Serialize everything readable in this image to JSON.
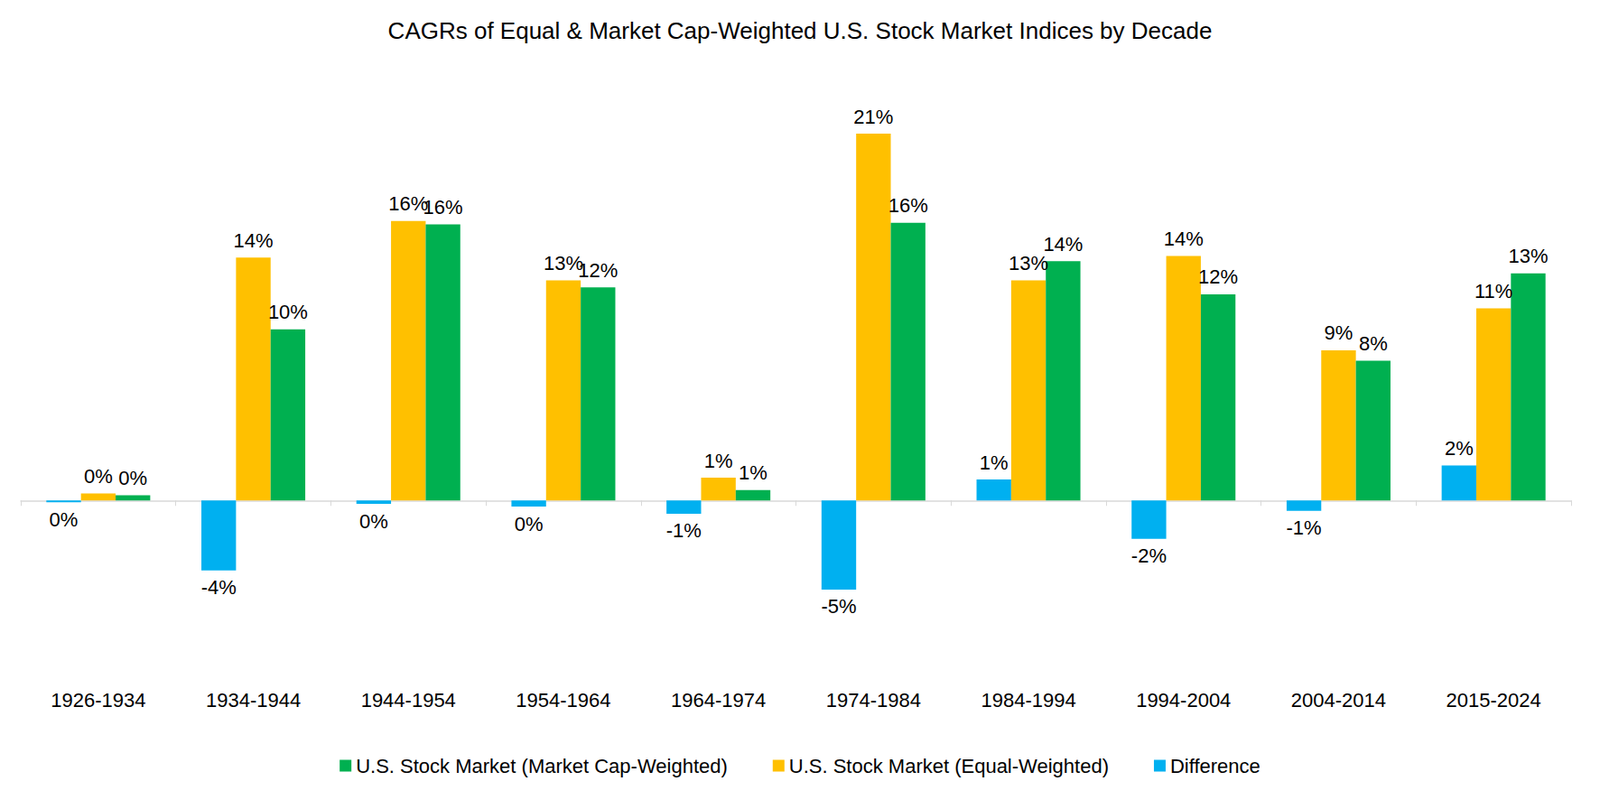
{
  "chart_data": {
    "type": "bar",
    "title": "CAGRs of Equal & Market Cap-Weighted U.S. Stock Market Indices by Decade",
    "categories": [
      "1926-1934",
      "1934-1944",
      "1944-1954",
      "1954-1964",
      "1964-1974",
      "1974-1984",
      "1984-1994",
      "1994-2004",
      "2004-2014",
      "2015-2024"
    ],
    "series": [
      {
        "name": "U.S. Stock Market (Market Cap-Weighted)",
        "color": "#00b050",
        "values": [
          0.3,
          9.8,
          15.8,
          12.2,
          0.6,
          15.9,
          13.7,
          11.8,
          8.0,
          13.0
        ],
        "value_labels": [
          "0%",
          "10%",
          "16%",
          "12%",
          "1%",
          "16%",
          "14%",
          "12%",
          "8%",
          "13%"
        ]
      },
      {
        "name": "U.S. Stock Market (Equal-Weighted)",
        "color": "#ffc000",
        "values": [
          0.4,
          13.9,
          16.0,
          12.6,
          1.3,
          21.0,
          12.6,
          14.0,
          8.6,
          11.0
        ],
        "value_labels": [
          "0%",
          "14%",
          "16%",
          "13%",
          "1%",
          "21%",
          "13%",
          "14%",
          "9%",
          "11%"
        ]
      },
      {
        "name": "Difference",
        "color": "#00b0f0",
        "values": [
          -0.1,
          -4.0,
          -0.2,
          -0.35,
          -0.76,
          -5.1,
          1.2,
          -2.2,
          -0.6,
          2.0
        ],
        "value_labels": [
          "0%",
          "-4%",
          "0%",
          "0%",
          "-1%",
          "-5%",
          "1%",
          "-2%",
          "-1%",
          "2%"
        ]
      }
    ],
    "ylim": [
      -8,
      24
    ],
    "grid": false,
    "legend": "bottom",
    "data_labels": true,
    "tick_labels": "x"
  }
}
